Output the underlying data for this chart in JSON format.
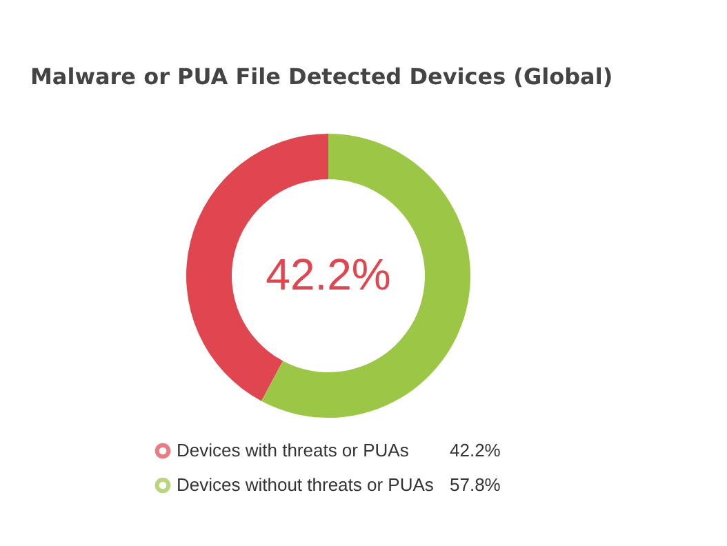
{
  "chart_data": {
    "type": "donut",
    "title": "Malware or PUA File Detected Devices (Global)",
    "categories": [
      "Devices with threats or PUAs",
      "Devices without threats or PUAs"
    ],
    "values": [
      42.2,
      57.8
    ],
    "colors": [
      "#e0464f",
      "#9cc646"
    ],
    "value_labels": [
      "42.2%",
      "57.8%"
    ],
    "annotations": [
      "42.2%"
    ],
    "legend": "bottom"
  }
}
